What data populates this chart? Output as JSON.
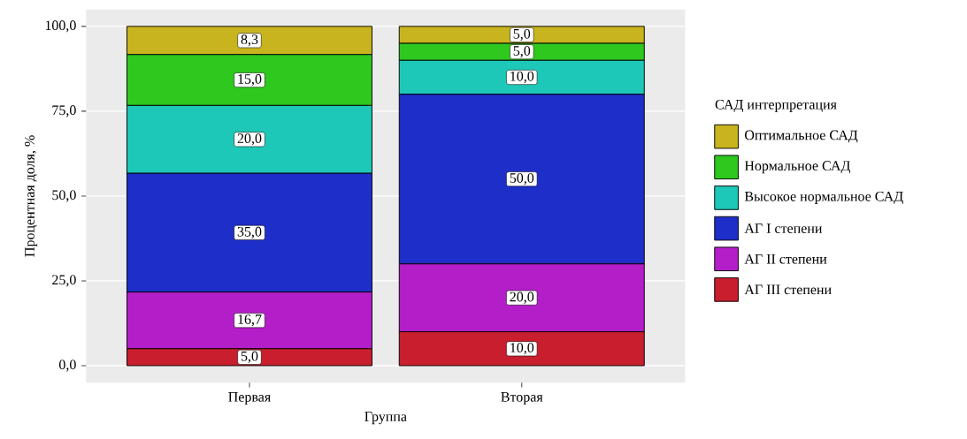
{
  "chart_data": {
    "type": "bar",
    "stacked": true,
    "xlabel": "Группа",
    "ylabel": "Процентная доля, %",
    "legend_title": "САД интерпретация",
    "categories": [
      "Первая",
      "Вторая"
    ],
    "series": [
      {
        "name": "АГ III степени",
        "color": "#c81e2e",
        "values": [
          5.0,
          10.0
        ],
        "value_labels": [
          "5,0",
          "10,0"
        ]
      },
      {
        "name": "АГ II степени",
        "color": "#b41ec8",
        "values": [
          16.7,
          20.0
        ],
        "value_labels": [
          "16,7",
          "20,0"
        ]
      },
      {
        "name": "АГ I степени",
        "color": "#1e2ec8",
        "values": [
          35.0,
          50.0
        ],
        "value_labels": [
          "35,0",
          "50,0"
        ]
      },
      {
        "name": "Высокое нормальное САД",
        "color": "#1ec8b8",
        "values": [
          20.0,
          10.0
        ],
        "value_labels": [
          "20,0",
          "10,0"
        ]
      },
      {
        "name": "Нормальное САД",
        "color": "#2ec81e",
        "values": [
          15.0,
          5.0
        ],
        "value_labels": [
          "15,0",
          "5,0"
        ]
      },
      {
        "name": "Оптимальное САД",
        "color": "#c8b41e",
        "values": [
          8.3,
          5.0
        ],
        "value_labels": [
          "8,3",
          "5,0"
        ]
      }
    ],
    "ylim": [
      -5,
      105
    ],
    "yticks": [
      {
        "value": 0,
        "label": "0,0"
      },
      {
        "value": 25,
        "label": "25,0"
      },
      {
        "value": 50,
        "label": "50,0"
      },
      {
        "value": 75,
        "label": "75,0"
      },
      {
        "value": 100,
        "label": "100,0"
      }
    ],
    "grid": "y",
    "legend": "right"
  }
}
